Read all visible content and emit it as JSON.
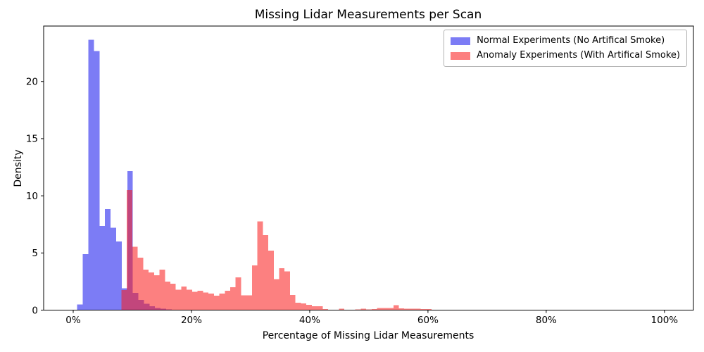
{
  "chart_data": {
    "type": "bar",
    "subtype": "overlapping_histograms",
    "title": "Missing Lidar Measurements per Scan",
    "xlabel": "Percentage of Missing Lidar Measurements",
    "ylabel": "Density",
    "grid": false,
    "legend_position": "upper right",
    "xlim": [
      -5.0,
      104.9
    ],
    "ylim": [
      0,
      24.85
    ],
    "x_ticks": [
      {
        "value": 0,
        "label": "0%"
      },
      {
        "value": 20,
        "label": "20%"
      },
      {
        "value": 40,
        "label": "40%"
      },
      {
        "value": 60,
        "label": "60%"
      },
      {
        "value": 80,
        "label": "80%"
      },
      {
        "value": 100,
        "label": "100%"
      }
    ],
    "y_ticks": [
      {
        "value": 0,
        "label": "0"
      },
      {
        "value": 5,
        "label": "5"
      },
      {
        "value": 10,
        "label": "10"
      },
      {
        "value": 15,
        "label": "15"
      },
      {
        "value": 20,
        "label": "20"
      }
    ],
    "series": [
      {
        "name": "Normal Experiments (No Artifical Smoke)",
        "swatch": "#7c7cf5",
        "fill": "#7c7cf5",
        "bin_start_pct": 0.68,
        "bin_width_pct": 0.94,
        "densities": [
          0.5,
          4.9,
          23.65,
          22.65,
          7.35,
          8.85,
          7.2,
          6.0,
          1.9,
          12.15,
          1.5,
          0.9,
          0.55,
          0.35,
          0.2,
          0.12,
          0.05
        ]
      },
      {
        "name": "Anomaly Experiments (With Artifical Smoke)",
        "swatch": "#fc8080",
        "fill": "rgba(250,28,28,0.56)",
        "bin_start_pct": 8.15,
        "bin_width_pct": 0.92,
        "densities": [
          1.75,
          10.5,
          5.55,
          4.6,
          3.55,
          3.3,
          3.05,
          3.55,
          2.5,
          2.3,
          1.8,
          2.05,
          1.8,
          1.6,
          1.7,
          1.55,
          1.45,
          1.25,
          1.45,
          1.7,
          2.0,
          2.85,
          1.3,
          1.3,
          3.9,
          7.75,
          6.55,
          5.2,
          2.7,
          3.65,
          3.4,
          1.33,
          0.65,
          0.57,
          0.45,
          0.35,
          0.35,
          0.1,
          0.04,
          0.04,
          0.12,
          0.03,
          0.03,
          0.05,
          0.12,
          0.05,
          0.1,
          0.18,
          0.18,
          0.18,
          0.43,
          0.15,
          0.12,
          0.12,
          0.12,
          0.1,
          0.08
        ]
      }
    ]
  }
}
